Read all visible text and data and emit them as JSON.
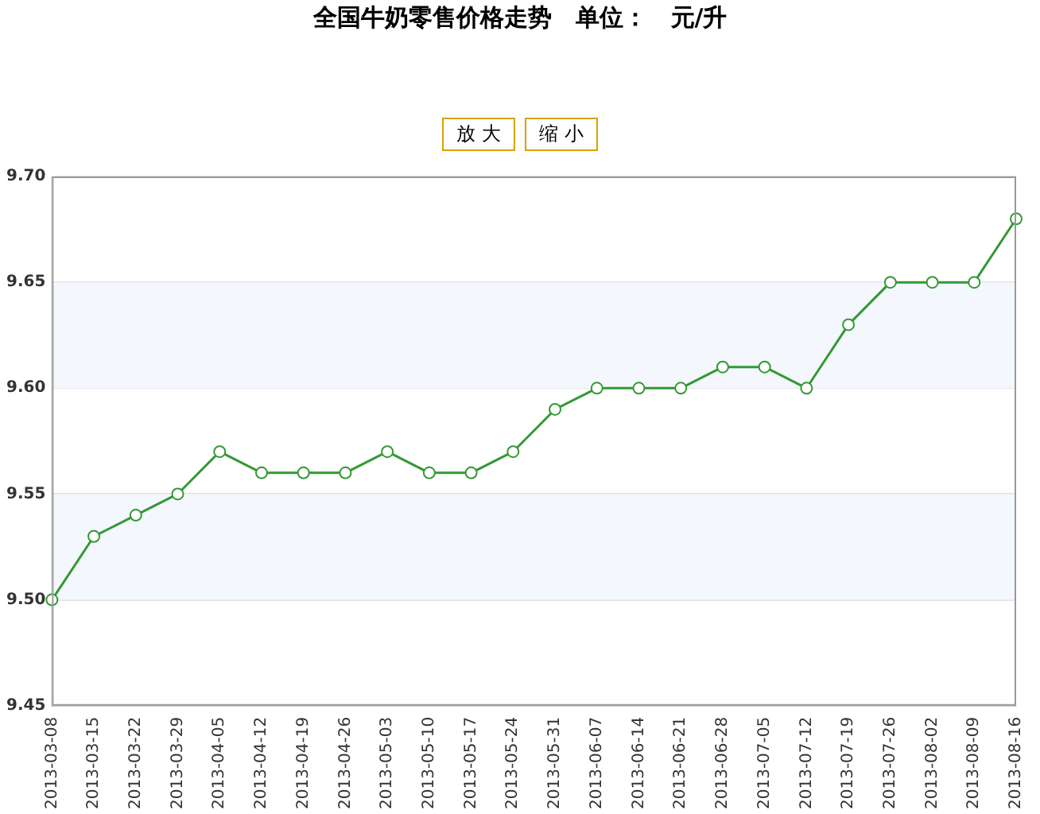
{
  "chart_data": {
    "type": "line",
    "title": "全国牛奶零售价格走势　单位：　元/升",
    "annotations": [
      "放 大",
      "缩 小"
    ],
    "categories": [
      "2013-03-08",
      "2013-03-15",
      "2013-03-22",
      "2013-03-29",
      "2013-04-05",
      "2013-04-12",
      "2013-04-19",
      "2013-04-26",
      "2013-05-03",
      "2013-05-10",
      "2013-05-17",
      "2013-05-24",
      "2013-05-31",
      "2013-06-07",
      "2013-06-14",
      "2013-06-21",
      "2013-06-28",
      "2013-07-05",
      "2013-07-12",
      "2013-07-19",
      "2013-07-26",
      "2013-08-02",
      "2013-08-09",
      "2013-08-16"
    ],
    "series": [
      {
        "color": "#339933",
        "values": [
          9.5,
          9.53,
          9.54,
          9.55,
          9.57,
          9.56,
          9.56,
          9.56,
          9.57,
          9.56,
          9.56,
          9.57,
          9.59,
          9.6,
          9.6,
          9.6,
          9.61,
          9.61,
          9.6,
          9.63,
          9.65,
          9.65,
          9.65,
          9.68
        ]
      }
    ],
    "ylim": [
      9.45,
      9.7
    ],
    "yticks": [
      {
        "value": 9.45,
        "label": "9.45"
      },
      {
        "value": 9.5,
        "label": "9.50"
      },
      {
        "value": 9.55,
        "label": "9.55"
      },
      {
        "value": 9.6,
        "label": "9.60"
      },
      {
        "value": 9.65,
        "label": "9.65"
      },
      {
        "value": 9.7,
        "label": "9.70"
      }
    ],
    "bands": [
      {
        "axis": "y",
        "from": 9.5,
        "to": 9.55,
        "color": "#f4f8fe"
      },
      {
        "axis": "y",
        "from": 9.6,
        "to": 9.65,
        "color": "#f4f8fe"
      }
    ],
    "grid": "y",
    "legend": false,
    "marker": "circle",
    "line_style": "solid"
  }
}
